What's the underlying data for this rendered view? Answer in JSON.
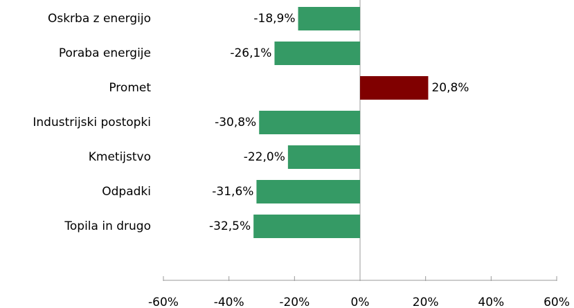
{
  "chart_data": {
    "type": "hbar",
    "categories": [
      "Oskrba z energijo",
      "Poraba energije",
      "Promet",
      "Industrijski postopki",
      "Kmetijstvo",
      "Odpadki",
      "Topila in drugo"
    ],
    "values": [
      -18.9,
      -26.1,
      20.8,
      -30.8,
      -22.0,
      -31.6,
      -32.5
    ],
    "value_labels": [
      "-18,9%",
      "-26,1%",
      "20,8%",
      "-30,8%",
      "-22,0%",
      "-31,6%",
      "-32,5%"
    ],
    "colors": [
      "#359a65",
      "#359a65",
      "#800000",
      "#359a65",
      "#359a65",
      "#359a65",
      "#359a65"
    ],
    "xlim": [
      -60,
      60
    ],
    "xticks": [
      {
        "value": -60,
        "label": "-60%"
      },
      {
        "value": -40,
        "label": "-40%"
      },
      {
        "value": -20,
        "label": "-20%"
      },
      {
        "value": 0,
        "label": "0%"
      },
      {
        "value": 20,
        "label": "20%"
      },
      {
        "value": 40,
        "label": "40%"
      },
      {
        "value": 60,
        "label": "60%"
      }
    ]
  }
}
